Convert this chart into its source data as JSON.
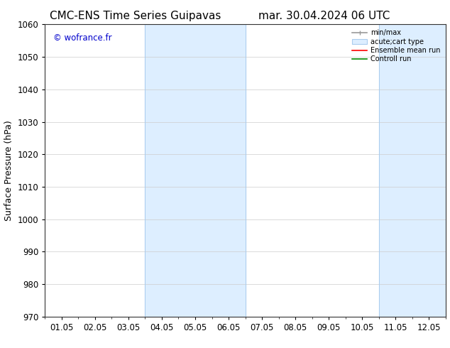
{
  "title_left": "CMC-ENS Time Series Guipavas",
  "title_right": "mar. 30.04.2024 06 UTC",
  "ylabel": "Surface Pressure (hPa)",
  "ylim": [
    970,
    1060
  ],
  "yticks": [
    970,
    980,
    990,
    1000,
    1010,
    1020,
    1030,
    1040,
    1050,
    1060
  ],
  "xlim": [
    0,
    12
  ],
  "xtick_labels": [
    "01.05",
    "02.05",
    "03.05",
    "04.05",
    "05.05",
    "06.05",
    "07.05",
    "08.05",
    "09.05",
    "10.05",
    "11.05",
    "12.05"
  ],
  "xtick_positions": [
    0.5,
    1.5,
    2.5,
    3.5,
    4.5,
    5.5,
    6.5,
    7.5,
    8.5,
    9.5,
    10.5,
    11.5
  ],
  "shaded_bands": [
    {
      "xmin": 3,
      "xmax": 6,
      "color": "#ddeeff"
    },
    {
      "xmin": 10,
      "xmax": 12,
      "color": "#ddeeff"
    }
  ],
  "band_border_color": "#aaccee",
  "watermark": "© wofrance.fr",
  "watermark_color": "#0000cc",
  "background_color": "#ffffff",
  "title_fontsize": 11,
  "tick_fontsize": 8.5,
  "ylabel_fontsize": 9
}
